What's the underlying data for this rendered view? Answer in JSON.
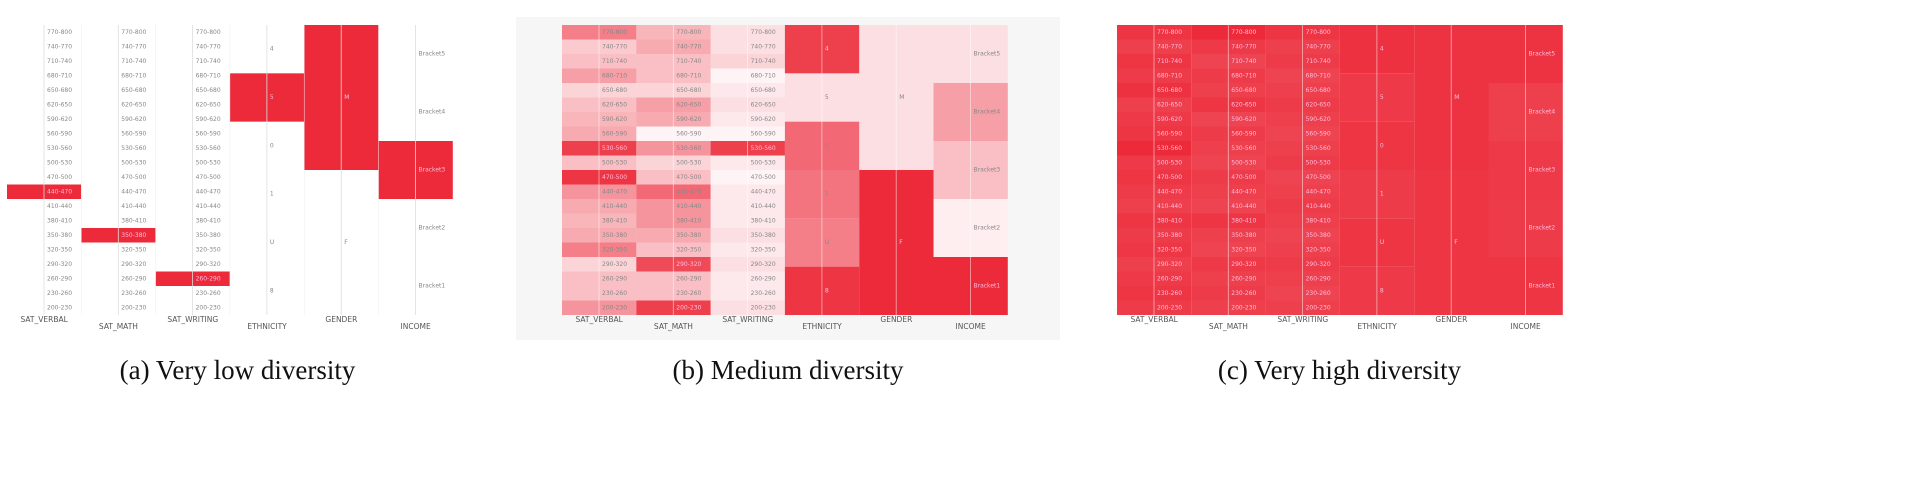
{
  "figure": {
    "color": "#ec2a3a",
    "columns": [
      {
        "name": "SAT_VERBAL",
        "levels": [
          "770-800",
          "740-770",
          "710-740",
          "680-710",
          "650-680",
          "620-650",
          "590-620",
          "560-590",
          "530-560",
          "500-530",
          "470-500",
          "440-470",
          "410-440",
          "380-410",
          "350-380",
          "320-350",
          "290-320",
          "260-290",
          "230-260",
          "200-230"
        ]
      },
      {
        "name": "SAT_MATH",
        "levels": [
          "770-800",
          "740-770",
          "710-740",
          "680-710",
          "650-680",
          "620-650",
          "590-620",
          "560-590",
          "530-560",
          "500-530",
          "470-500",
          "440-470",
          "410-440",
          "380-410",
          "350-380",
          "320-350",
          "290-320",
          "260-290",
          "230-260",
          "200-230"
        ]
      },
      {
        "name": "SAT_WRITING",
        "levels": [
          "770-800",
          "740-770",
          "710-740",
          "680-710",
          "650-680",
          "620-650",
          "590-620",
          "560-590",
          "530-560",
          "500-530",
          "470-500",
          "440-470",
          "410-440",
          "380-410",
          "350-380",
          "320-350",
          "290-320",
          "260-290",
          "230-260",
          "200-230"
        ]
      },
      {
        "name": "ETHNICITY",
        "levels": [
          "4",
          "5",
          "0",
          "1",
          "U",
          "8"
        ]
      },
      {
        "name": "GENDER",
        "levels": [
          "M",
          "F"
        ]
      },
      {
        "name": "INCOME",
        "levels": [
          "Bracket5",
          "Bracket4",
          "Bracket3",
          "Bracket2",
          "Bracket1"
        ]
      }
    ],
    "panels": [
      {
        "caption": "(a)  Very low diversity",
        "background": "#ffffff",
        "shades": [
          [
            0,
            0,
            0,
            0,
            0,
            0,
            0,
            0,
            0,
            0,
            0,
            1,
            0,
            0,
            0,
            0,
            0,
            0,
            0,
            0
          ],
          [
            0,
            0,
            0,
            0,
            0,
            0,
            0,
            0,
            0,
            0,
            0,
            0,
            0,
            0,
            1,
            0,
            0,
            0,
            0,
            0
          ],
          [
            0,
            0,
            0,
            0,
            0,
            0,
            0,
            0,
            0,
            0,
            0,
            0,
            0,
            0,
            0,
            0,
            0,
            1,
            0,
            0
          ],
          [
            0,
            1,
            0,
            0,
            0,
            0
          ],
          [
            1,
            0
          ],
          [
            0,
            0,
            1,
            0,
            0
          ]
        ]
      },
      {
        "caption": "(b)  Medium diversity",
        "background": "#f6f6f6",
        "shades": [
          [
            0.6,
            0.25,
            0.3,
            0.45,
            0.2,
            0.3,
            0.35,
            0.4,
            0.9,
            0.3,
            0.95,
            0.5,
            0.4,
            0.35,
            0.4,
            0.6,
            0.2,
            0.3,
            0.3,
            0.5
          ],
          [
            0.35,
            0.4,
            0.3,
            0.3,
            0.2,
            0.45,
            0.4,
            0.05,
            0.5,
            0.2,
            0.3,
            0.7,
            0.5,
            0.5,
            0.4,
            0.3,
            0.85,
            0.3,
            0.3,
            0.9
          ],
          [
            0.15,
            0.15,
            0.2,
            0.05,
            0.1,
            0.15,
            0.1,
            0.05,
            0.9,
            0.1,
            0.05,
            0.1,
            0.1,
            0.1,
            0.15,
            0.1,
            0.15,
            0.1,
            0.1,
            0.15
          ],
          [
            0.9,
            0.15,
            0.7,
            0.65,
            0.6,
            0.95
          ],
          [
            0.15,
            1
          ],
          [
            0.15,
            0.45,
            0.3,
            0.08,
            1
          ]
        ]
      },
      {
        "caption": "(c)  Very high diversity",
        "background": "#ffffff",
        "shades": [
          [
            0.95,
            0.9,
            0.95,
            0.92,
            0.97,
            0.9,
            0.93,
            0.95,
            1,
            0.93,
            0.95,
            0.92,
            0.9,
            0.95,
            0.92,
            0.94,
            0.9,
            0.93,
            0.95,
            0.92
          ],
          [
            1,
            0.93,
            0.88,
            0.92,
            0.9,
            0.95,
            0.88,
            0.92,
            0.9,
            0.88,
            0.92,
            0.9,
            0.88,
            0.95,
            0.9,
            0.88,
            0.93,
            0.9,
            0.92,
            0.9
          ],
          [
            0.95,
            0.9,
            0.92,
            0.88,
            0.9,
            0.92,
            0.9,
            0.88,
            0.9,
            0.92,
            0.88,
            0.9,
            0.92,
            0.9,
            0.88,
            0.9,
            0.92,
            0.9,
            0.88,
            0.9
          ],
          [
            0.97,
            0.93,
            0.95,
            0.92,
            0.95,
            0.93
          ],
          [
            0.96,
            0.95
          ],
          [
            0.96,
            0.9,
            0.93,
            0.92,
            0.95
          ]
        ]
      }
    ]
  }
}
